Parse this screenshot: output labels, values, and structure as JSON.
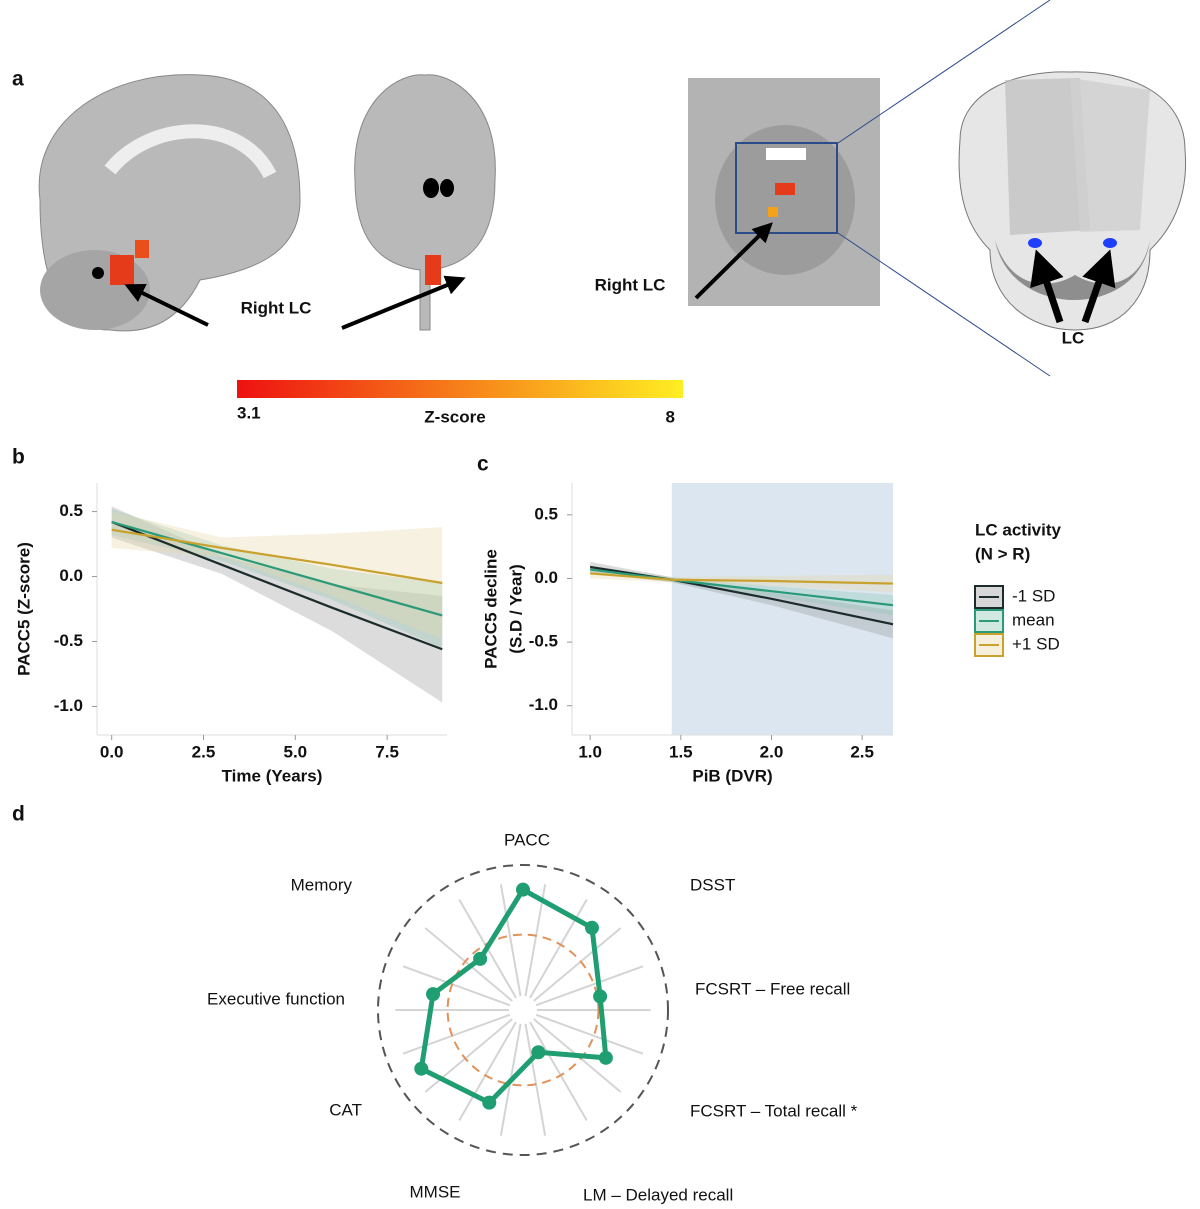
{
  "panel_a": {
    "panel": "a",
    "annotations": [
      "Right LC",
      "Right LC",
      "LC"
    ],
    "colorbar": {
      "label": "Z-score",
      "range": [
        3.1,
        8
      ],
      "colors": [
        "#ee1111",
        "#ffee22"
      ]
    }
  },
  "chart_data": [
    {
      "type": "line",
      "panel": "b",
      "xlabel": "Time (Years)",
      "ylabel": "PACC5 (Z-score)",
      "x": [
        0,
        3,
        6,
        9
      ],
      "xlim": [
        -0.4,
        9.13
      ],
      "xticks": [
        {
          "value": 0,
          "label": "0.0"
        },
        2.5,
        {
          "value": 5,
          "label": "5.0"
        },
        7.5
      ],
      "ylim": [
        -1.22,
        0.72
      ],
      "yticks": [
        0.5,
        {
          "value": 0,
          "label": "0.0"
        },
        -0.5,
        {
          "value": -1,
          "label": "-1.0"
        }
      ],
      "series": [
        {
          "color": "#1c2b2b",
          "band_color": "#9a9a9a",
          "values": [
            0.42,
            0.09,
            -0.24,
            -0.56
          ],
          "lower": [
            0.3,
            0.02,
            -0.42,
            -0.97
          ],
          "upper": [
            0.54,
            0.16,
            -0.06,
            -0.15
          ]
        },
        {
          "color": "#2a9a78",
          "band_color": "#8fc7b5",
          "values": [
            0.42,
            0.18,
            -0.06,
            -0.3
          ],
          "lower": [
            0.32,
            0.12,
            -0.18,
            -0.55
          ],
          "upper": [
            0.52,
            0.24,
            0.06,
            -0.05
          ]
        },
        {
          "color": "#c9a12e",
          "band_color": "#e8d6a8",
          "values": [
            0.36,
            0.22,
            0.09,
            -0.05
          ],
          "lower": [
            0.22,
            0.15,
            -0.15,
            -0.48
          ],
          "upper": [
            0.5,
            0.3,
            0.33,
            0.38
          ]
        }
      ]
    },
    {
      "type": "line",
      "panel": "c",
      "xlabel": "PiB (DVR)",
      "ylabel": [
        "PACC5 decline",
        "(S.D / Year)"
      ],
      "x": [
        1.0,
        1.45,
        2.0,
        2.67
      ],
      "xlim": [
        0.9,
        2.67
      ],
      "xticks": [
        {
          "value": 1,
          "label": "1.0"
        },
        1.5,
        {
          "value": 2,
          "label": "2.0"
        },
        2.5
      ],
      "ylim": [
        -1.23,
        0.75
      ],
      "yticks": [
        0.5,
        {
          "value": 0,
          "label": "0.0"
        },
        -0.5,
        {
          "value": -1,
          "label": "-1.0"
        }
      ],
      "highlight": [
        1.45,
        2.67
      ],
      "highlight_color": "#dbe6f1",
      "legend": "right",
      "legend_title": [
        "LC activity",
        "(N > R)"
      ],
      "series": [
        {
          "name": "-1 SD",
          "color": "#1c2b2b",
          "band_color": "#9a9a9a",
          "values": [
            0.09,
            -0.01,
            -0.16,
            -0.36
          ],
          "lower": [
            0.05,
            -0.03,
            -0.21,
            -0.47
          ],
          "upper": [
            0.13,
            0.01,
            -0.11,
            -0.25
          ]
        },
        {
          "name": "mean",
          "color": "#2a9a78",
          "band_color": "#8fc7b5",
          "values": [
            0.07,
            -0.01,
            -0.1,
            -0.21
          ],
          "lower": [
            0.04,
            -0.03,
            -0.14,
            -0.29
          ],
          "upper": [
            0.1,
            0.01,
            -0.06,
            -0.13
          ]
        },
        {
          "name": "+1 SD",
          "color": "#c9a12e",
          "band_color": "#e8d6a8",
          "values": [
            0.04,
            -0.01,
            -0.02,
            -0.04
          ],
          "lower": [
            0.0,
            -0.03,
            -0.06,
            -0.11
          ],
          "upper": [
            0.08,
            0.01,
            0.02,
            0.03
          ]
        }
      ]
    },
    {
      "type": "radar",
      "panel": "d",
      "categories": [
        "PACC",
        "DSST",
        "FCSRT – Free recall",
        "FCSRT – Total recall *",
        "LM – Delayed recall",
        "MMSE",
        "CAT",
        "Executive function",
        "Memory"
      ],
      "values": [
        0.83,
        0.74,
        0.54,
        0.66,
        0.31,
        0.68,
        0.81,
        0.63,
        0.46
      ],
      "rlim": [
        0,
        1
      ],
      "reference": 0.52,
      "color": "#1f9e72",
      "reference_color": "#e0925a"
    }
  ]
}
